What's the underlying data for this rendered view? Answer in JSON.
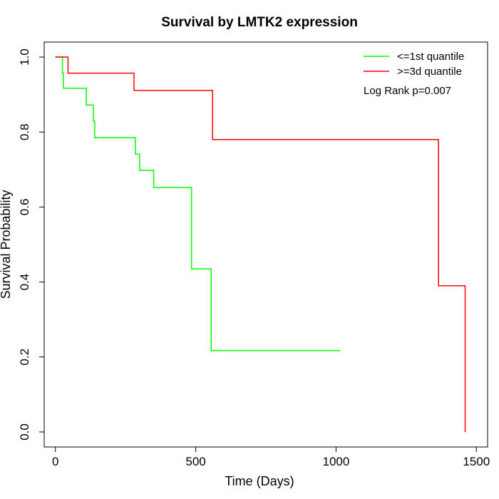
{
  "chart_data": {
    "type": "line",
    "title": "Survival by LMTK2 expression",
    "xlabel": "Time (Days)",
    "ylabel": "Survival Probability",
    "xlim": [
      -40,
      1540
    ],
    "ylim": [
      -0.04,
      1.04
    ],
    "x_ticks": [
      0,
      500,
      1000,
      1500
    ],
    "x_tick_labels": [
      "0",
      "500",
      "1000",
      "1500"
    ],
    "y_ticks": [
      0.0,
      0.2,
      0.4,
      0.6,
      0.8,
      1.0
    ],
    "y_tick_labels": [
      "0.0",
      "0.2",
      "0.4",
      "0.6",
      "0.8",
      "1.0"
    ],
    "grid": false,
    "legend_position": "top-right",
    "series": [
      {
        "name": "<=1st quantile",
        "color": "#00ff00",
        "step": true,
        "x": [
          0,
          25,
          28,
          110,
          135,
          140,
          285,
          300,
          350,
          485,
          555,
          1015
        ],
        "y": [
          1.0,
          0.957,
          0.917,
          0.872,
          0.829,
          0.785,
          0.741,
          0.698,
          0.652,
          0.435,
          0.217,
          0.217
        ]
      },
      {
        "name": ">=3d quantile",
        "color": "#ff0000",
        "step": true,
        "x": [
          0,
          45,
          280,
          560,
          1365,
          1460,
          1460
        ],
        "y": [
          1.0,
          0.957,
          0.911,
          0.78,
          0.39,
          0.39,
          0.0
        ]
      }
    ],
    "annotations": [
      "Log Rank p=0.007"
    ]
  }
}
